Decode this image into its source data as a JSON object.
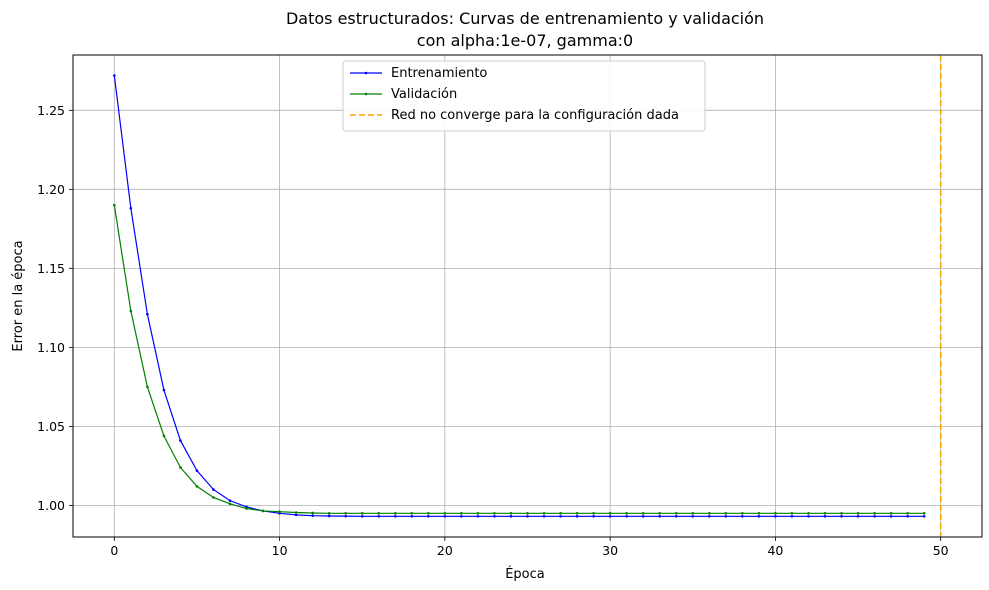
{
  "chart_data": {
    "type": "line",
    "title_line1": "Datos estructurados: Curvas de entrenamiento y validación",
    "title_line2": "con alpha:1e-07, gamma:0",
    "xlabel": "Época",
    "ylabel": "Error en la época",
    "xlim": [
      -2.5,
      52.5
    ],
    "ylim": [
      0.98,
      1.285
    ],
    "xticks": [
      0,
      10,
      20,
      30,
      40,
      50
    ],
    "yticks": [
      1.0,
      1.05,
      1.1,
      1.15,
      1.2,
      1.25
    ],
    "xtick_labels": [
      "0",
      "10",
      "20",
      "30",
      "40",
      "50"
    ],
    "ytick_labels": [
      "1.00",
      "1.05",
      "1.10",
      "1.15",
      "1.20",
      "1.25"
    ],
    "grid": true,
    "legend_position": "top-center",
    "series": [
      {
        "name": "Entrenamiento",
        "color": "#0000ff",
        "x": [
          0,
          1,
          2,
          3,
          4,
          5,
          6,
          7,
          8,
          9,
          10,
          11,
          12,
          13,
          14,
          15,
          16,
          17,
          18,
          19,
          20,
          21,
          22,
          23,
          24,
          25,
          26,
          27,
          28,
          29,
          30,
          31,
          32,
          33,
          34,
          35,
          36,
          37,
          38,
          39,
          40,
          41,
          42,
          43,
          44,
          45,
          46,
          47,
          48,
          49
        ],
        "values": [
          1.272,
          1.188,
          1.121,
          1.073,
          1.041,
          1.022,
          1.01,
          1.003,
          0.999,
          0.9965,
          0.995,
          0.994,
          0.9935,
          0.9933,
          0.9932,
          0.9931,
          0.9931,
          0.9931,
          0.9931,
          0.9931,
          0.9931,
          0.9931,
          0.9931,
          0.9931,
          0.9931,
          0.9931,
          0.9931,
          0.9931,
          0.9931,
          0.9931,
          0.9931,
          0.9931,
          0.9931,
          0.9931,
          0.9931,
          0.9931,
          0.9931,
          0.9931,
          0.9931,
          0.9931,
          0.9931,
          0.9931,
          0.9931,
          0.9931,
          0.9931,
          0.9931,
          0.9931,
          0.9931,
          0.9931,
          0.9931
        ]
      },
      {
        "name": "Validación",
        "color": "#008000",
        "x": [
          0,
          1,
          2,
          3,
          4,
          5,
          6,
          7,
          8,
          9,
          10,
          11,
          12,
          13,
          14,
          15,
          16,
          17,
          18,
          19,
          20,
          21,
          22,
          23,
          24,
          25,
          26,
          27,
          28,
          29,
          30,
          31,
          32,
          33,
          34,
          35,
          36,
          37,
          38,
          39,
          40,
          41,
          42,
          43,
          44,
          45,
          46,
          47,
          48,
          49
        ],
        "values": [
          1.19,
          1.123,
          1.075,
          1.044,
          1.024,
          1.012,
          1.005,
          1.001,
          0.998,
          0.9965,
          0.996,
          0.9955,
          0.9952,
          0.995,
          0.995,
          0.995,
          0.995,
          0.995,
          0.995,
          0.995,
          0.995,
          0.995,
          0.995,
          0.995,
          0.995,
          0.995,
          0.995,
          0.995,
          0.995,
          0.995,
          0.995,
          0.995,
          0.995,
          0.995,
          0.995,
          0.995,
          0.995,
          0.995,
          0.995,
          0.995,
          0.995,
          0.995,
          0.995,
          0.995,
          0.995,
          0.995,
          0.995,
          0.995,
          0.995,
          0.995
        ]
      }
    ],
    "vline": {
      "name": "Red no converge para la configuración dada",
      "x": 50,
      "color": "#ffa500",
      "style": "dashed"
    }
  }
}
